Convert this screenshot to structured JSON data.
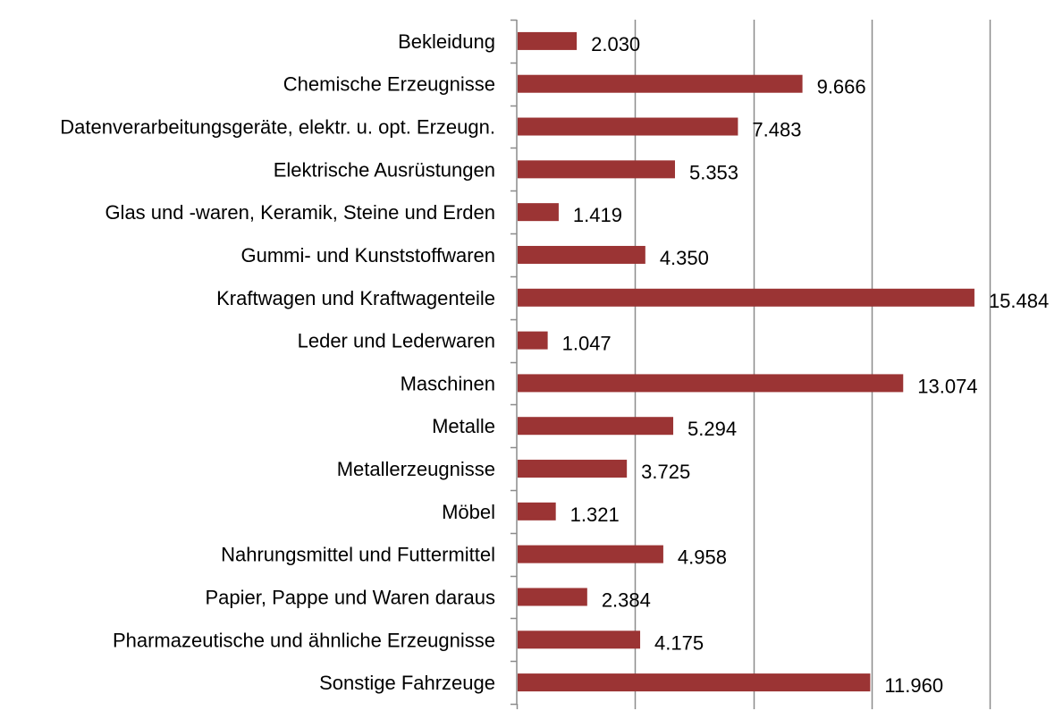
{
  "chart_data": {
    "type": "bar",
    "orientation": "horizontal",
    "categories": [
      "Bekleidung",
      "Chemische Erzeugnisse",
      "Datenverarbeitungsgeräte, elektr. u. opt. Erzeugn.",
      "Elektrische Ausrüstungen",
      "Glas und -waren, Keramik, Steine und Erden",
      "Gummi- und Kunststoffwaren",
      "Kraftwagen und Kraftwagenteile",
      "Leder und Lederwaren",
      "Maschinen",
      "Metalle",
      "Metallerzeugnisse",
      "Möbel",
      "Nahrungsmittel und Futtermittel",
      "Papier, Pappe und Waren daraus",
      "Pharmazeutische und ähnliche Erzeugnisse",
      "Sonstige Fahrzeuge"
    ],
    "values": [
      2030,
      9666,
      7483,
      5353,
      1419,
      4350,
      15484,
      1047,
      13074,
      5294,
      3725,
      1321,
      4958,
      2384,
      4175,
      11960
    ],
    "value_labels": [
      "2.030",
      "9.666",
      "7.483",
      "5.353",
      "1.419",
      "4.350",
      "15.484",
      "1.047",
      "13.074",
      "5.294",
      "3.725",
      "1.321",
      "4.958",
      "2.384",
      "4.175",
      "11.960"
    ],
    "xlim": [
      0,
      16000
    ],
    "gridlines_x": [
      4000,
      8000,
      12000,
      16000
    ],
    "grid": true,
    "bar_color": "#9B3434",
    "grid_color": "#8C8C8C",
    "title": "",
    "xlabel": "",
    "ylabel": ""
  }
}
